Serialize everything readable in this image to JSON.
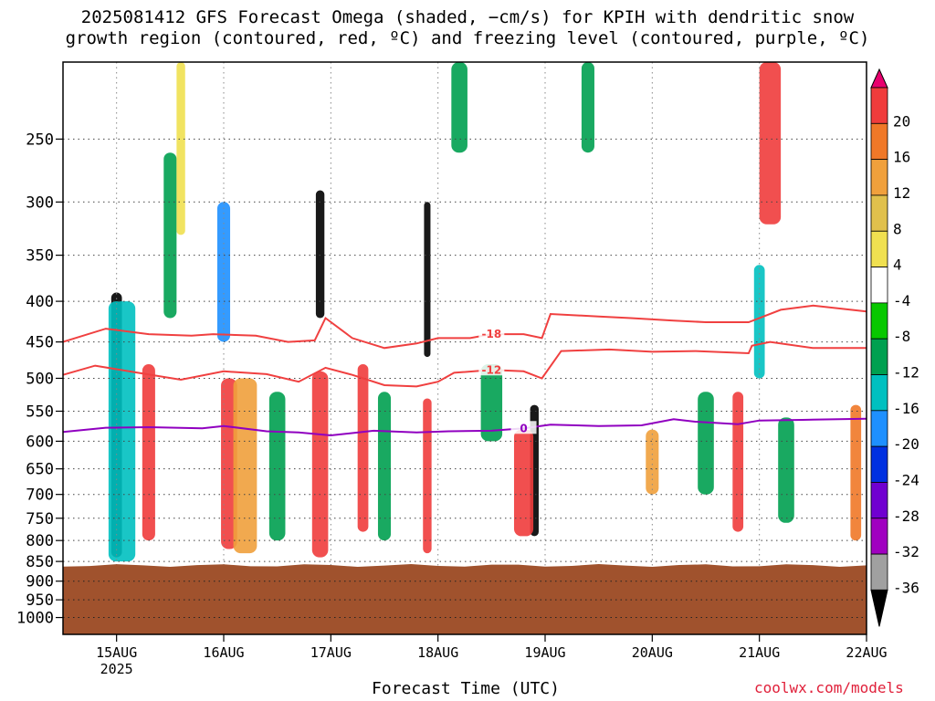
{
  "title": {
    "line1": "2025081412 GFS Forecast Omega (shaded, −cm/s) for KPIH with dendritic snow",
    "line2": "growth region (contoured, red, ºC) and freezing level (contoured, purple, ºC)"
  },
  "chart_data": {
    "type": "heatmap",
    "xlabel": "Forecast Time (UTC)",
    "ylabel": "",
    "x_ticks": [
      "15AUG",
      "16AUG",
      "17AUG",
      "18AUG",
      "19AUG",
      "20AUG",
      "21AUG",
      "22AUG"
    ],
    "x_year_label": "2025",
    "y_ticks": [
      250,
      300,
      350,
      400,
      450,
      500,
      550,
      600,
      650,
      700,
      750,
      800,
      850,
      900,
      950,
      1000
    ],
    "ylim": [
      200,
      1050
    ],
    "y_scale": "log",
    "y_reversed": true,
    "grid": true,
    "terrain_pressure": 860,
    "terrain_color": "#a0522d",
    "colorbar": {
      "ticks": [
        20,
        16,
        12,
        8,
        4,
        -4,
        -8,
        -12,
        -16,
        -20,
        -24,
        -28,
        -32,
        -36
      ],
      "colors": [
        "#e8006e",
        "#f03c3c",
        "#f07828",
        "#f0a03c",
        "#e0c04c",
        "#f0e050",
        "#ffffff",
        "#08c800",
        "#00a050",
        "#00c0c0",
        "#1e90ff",
        "#0030e0",
        "#7000d0",
        "#a000c0",
        "#a0a0a0",
        "#000000"
      ]
    },
    "contours": [
      {
        "label": "-18",
        "color": "#f04040",
        "points": [
          [
            14.5,
            450
          ],
          [
            14.9,
            433
          ],
          [
            15.3,
            440
          ],
          [
            15.7,
            442
          ],
          [
            15.9,
            440
          ],
          [
            16.3,
            442
          ],
          [
            16.6,
            450
          ],
          [
            16.85,
            448
          ],
          [
            16.95,
            420
          ],
          [
            17.2,
            445
          ],
          [
            17.5,
            458
          ],
          [
            17.8,
            452
          ],
          [
            18.0,
            445
          ],
          [
            18.3,
            445
          ],
          [
            18.5,
            440
          ],
          [
            18.8,
            440
          ],
          [
            18.97,
            445
          ],
          [
            19.05,
            415
          ],
          [
            19.5,
            418
          ],
          [
            19.8,
            420
          ],
          [
            20.2,
            423
          ],
          [
            20.5,
            425
          ],
          [
            20.9,
            425
          ],
          [
            21.2,
            410
          ],
          [
            21.5,
            405
          ],
          [
            22.0,
            412
          ]
        ]
      },
      {
        "label": "-12",
        "color": "#f04040",
        "points": [
          [
            14.5,
            495
          ],
          [
            14.8,
            482
          ],
          [
            15.2,
            492
          ],
          [
            15.6,
            502
          ],
          [
            16.0,
            490
          ],
          [
            16.4,
            494
          ],
          [
            16.7,
            505
          ],
          [
            16.95,
            485
          ],
          [
            17.2,
            495
          ],
          [
            17.5,
            510
          ],
          [
            17.8,
            512
          ],
          [
            18.0,
            505
          ],
          [
            18.15,
            492
          ],
          [
            18.5,
            488
          ],
          [
            18.8,
            490
          ],
          [
            18.97,
            500
          ],
          [
            19.15,
            462
          ],
          [
            19.6,
            460
          ],
          [
            20.0,
            463
          ],
          [
            20.4,
            462
          ],
          [
            20.9,
            465
          ],
          [
            20.93,
            455
          ],
          [
            21.1,
            450
          ],
          [
            21.5,
            458
          ],
          [
            22.0,
            458
          ]
        ]
      },
      {
        "label": "0",
        "color": "#9000c0",
        "points": [
          [
            14.5,
            584
          ],
          [
            14.9,
            577
          ],
          [
            15.3,
            576
          ],
          [
            15.8,
            578
          ],
          [
            16.0,
            574
          ],
          [
            16.4,
            583
          ],
          [
            16.7,
            585
          ],
          [
            17.0,
            590
          ],
          [
            17.4,
            582
          ],
          [
            17.8,
            585
          ],
          [
            18.1,
            583
          ],
          [
            18.5,
            582
          ],
          [
            18.8,
            578
          ],
          [
            19.05,
            572
          ],
          [
            19.5,
            574
          ],
          [
            19.9,
            573
          ],
          [
            20.2,
            563
          ],
          [
            20.4,
            567
          ],
          [
            20.8,
            571
          ],
          [
            21.0,
            565
          ],
          [
            21.4,
            564
          ],
          [
            22.0,
            562
          ]
        ]
      }
    ],
    "omega_cells": [
      {
        "t": 15.0,
        "p1": 390,
        "p2": 840,
        "w": 0.1,
        "v": -36
      },
      {
        "t": 15.05,
        "p1": 400,
        "p2": 850,
        "w": 0.25,
        "v": -12
      },
      {
        "t": 15.3,
        "p1": 480,
        "p2": 800,
        "w": 0.12,
        "v": 20
      },
      {
        "t": 15.5,
        "p1": 260,
        "p2": 420,
        "w": 0.12,
        "v": -8
      },
      {
        "t": 15.6,
        "p1": 200,
        "p2": 330,
        "w": 0.08,
        "v": 4
      },
      {
        "t": 16.0,
        "p1": 300,
        "p2": 450,
        "w": 0.12,
        "v": -16
      },
      {
        "t": 16.05,
        "p1": 500,
        "p2": 820,
        "w": 0.15,
        "v": 20
      },
      {
        "t": 16.2,
        "p1": 500,
        "p2": 830,
        "w": 0.22,
        "v": 12
      },
      {
        "t": 16.5,
        "p1": 520,
        "p2": 800,
        "w": 0.15,
        "v": -8
      },
      {
        "t": 16.9,
        "p1": 290,
        "p2": 420,
        "w": 0.08,
        "v": -36
      },
      {
        "t": 16.9,
        "p1": 490,
        "p2": 840,
        "w": 0.15,
        "v": 20
      },
      {
        "t": 17.3,
        "p1": 480,
        "p2": 780,
        "w": 0.1,
        "v": 20
      },
      {
        "t": 17.5,
        "p1": 520,
        "p2": 800,
        "w": 0.12,
        "v": -8
      },
      {
        "t": 17.9,
        "p1": 300,
        "p2": 470,
        "w": 0.06,
        "v": -36
      },
      {
        "t": 17.9,
        "p1": 530,
        "p2": 830,
        "w": 0.08,
        "v": 20
      },
      {
        "t": 18.2,
        "p1": 200,
        "p2": 260,
        "w": 0.15,
        "v": -8
      },
      {
        "t": 18.5,
        "p1": 480,
        "p2": 600,
        "w": 0.2,
        "v": -8
      },
      {
        "t": 18.9,
        "p1": 540,
        "p2": 790,
        "w": 0.08,
        "v": -36
      },
      {
        "t": 18.8,
        "p1": 580,
        "p2": 790,
        "w": 0.18,
        "v": 20
      },
      {
        "t": 19.4,
        "p1": 200,
        "p2": 260,
        "w": 0.12,
        "v": -8
      },
      {
        "t": 20.0,
        "p1": 580,
        "p2": 700,
        "w": 0.12,
        "v": 12
      },
      {
        "t": 20.5,
        "p1": 520,
        "p2": 700,
        "w": 0.15,
        "v": -8
      },
      {
        "t": 20.8,
        "p1": 520,
        "p2": 780,
        "w": 0.1,
        "v": 20
      },
      {
        "t": 21.1,
        "p1": 200,
        "p2": 320,
        "w": 0.2,
        "v": 20
      },
      {
        "t": 21.0,
        "p1": 360,
        "p2": 500,
        "w": 0.1,
        "v": -12
      },
      {
        "t": 21.25,
        "p1": 560,
        "p2": 760,
        "w": 0.15,
        "v": -8
      },
      {
        "t": 21.9,
        "p1": 540,
        "p2": 800,
        "w": 0.1,
        "v": 16
      }
    ]
  },
  "credit": "coolwx.com/models"
}
